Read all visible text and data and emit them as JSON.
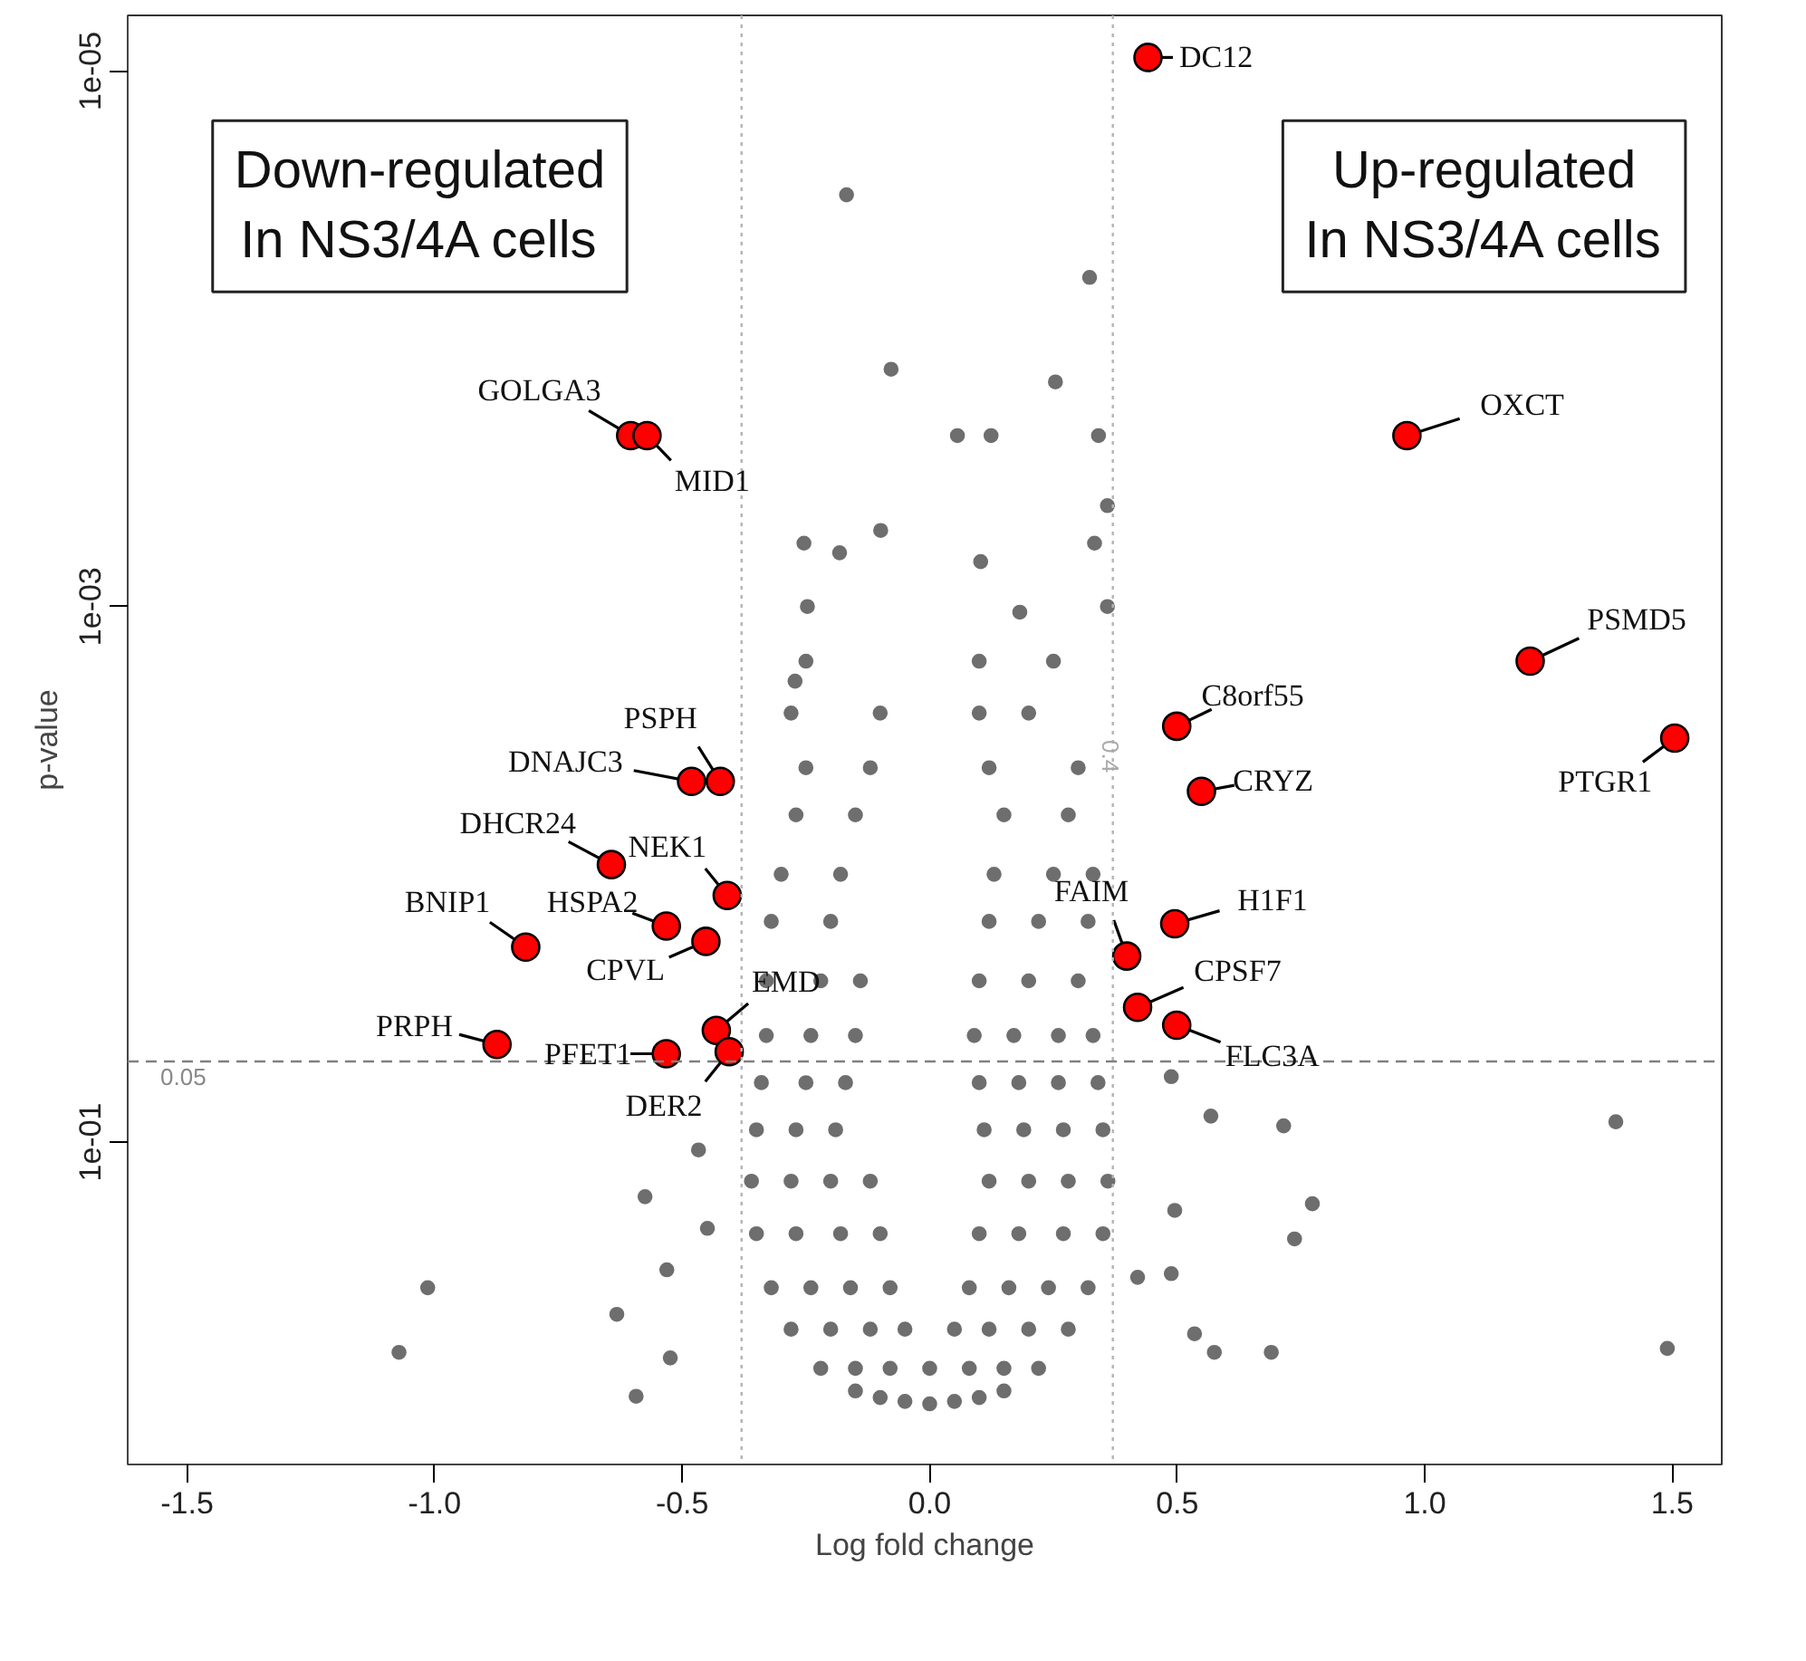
{
  "chart_data": {
    "type": "scatter",
    "xlabel": "Log fold change",
    "ylabel": "p-value",
    "log": "y",
    "marker": "circle",
    "grid": false,
    "xlim": [
      -1.62,
      1.6
    ],
    "ylim": [
      1.6,
      6.2e-06
    ],
    "xticks": [
      {
        "value": -1.5,
        "label": "-1.5"
      },
      {
        "value": -1.0,
        "label": "-1.0"
      },
      {
        "value": -0.5,
        "label": "-0.5"
      },
      {
        "value": 0.0,
        "label": "0.0"
      },
      {
        "value": 0.5,
        "label": "0.5"
      },
      {
        "value": 1.0,
        "label": "1.0"
      },
      {
        "value": 1.5,
        "label": "1.5"
      }
    ],
    "yticks": [
      {
        "value": 1e-05,
        "label": "1e-05"
      },
      {
        "value": 0.001,
        "label": "1e-03"
      },
      {
        "value": 0.1,
        "label": "1e-01"
      }
    ],
    "ref_lines": [
      {
        "axis": "x",
        "value": -0.38,
        "line_style": "dotted",
        "color": "#b4b4b4"
      },
      {
        "axis": "x",
        "value": 0.37,
        "label": "0.4",
        "line_style": "dotted",
        "color": "#b4b4b4"
      },
      {
        "axis": "y",
        "value": 0.05,
        "label": "0.05",
        "line_style": "dashed",
        "color": "#808080"
      }
    ],
    "series": [
      {
        "color": "#6e6e6e",
        "x": [
          -0.15,
          -0.1,
          -0.05,
          0,
          0.05,
          0.1,
          0.15,
          -0.22,
          -0.15,
          -0.08,
          0.0,
          0.08,
          0.15,
          0.22,
          -0.28,
          -0.2,
          -0.12,
          -0.05,
          0.05,
          0.12,
          0.2,
          0.28,
          -0.32,
          -0.24,
          -0.16,
          -0.08,
          0.08,
          0.16,
          0.24,
          0.32,
          -0.35,
          -0.27,
          -0.18,
          -0.1,
          0.1,
          0.18,
          0.27,
          0.35,
          -0.36,
          -0.28,
          -0.2,
          -0.12,
          0.12,
          0.2,
          0.28,
          0.36,
          -0.35,
          -0.27,
          -0.19,
          0.11,
          0.19,
          0.27,
          0.35,
          -0.34,
          -0.25,
          -0.17,
          0.1,
          0.18,
          0.26,
          0.34,
          -0.33,
          -0.24,
          -0.15,
          0.09,
          0.17,
          0.26,
          0.33,
          -0.33,
          -0.22,
          -0.14,
          0.1,
          0.2,
          0.3,
          -0.32,
          -0.2,
          0.12,
          0.22,
          0.32,
          -0.3,
          -0.18,
          0.13,
          0.25,
          0.33,
          -0.27,
          -0.15,
          0.15,
          0.28,
          -0.25,
          -0.12,
          0.12,
          0.3,
          -0.28,
          -0.1,
          0.1,
          0.2,
          -0.25,
          0.1,
          0.25,
          -0.168,
          -0.078,
          0.323,
          0.254,
          0.341,
          0.056,
          0.124,
          -0.254,
          -0.182,
          -0.099,
          -0.247,
          -0.272,
          0.359,
          0.333,
          0.103,
          0.359,
          0.182,
          -0.575,
          -1.014,
          -1.072,
          -0.593,
          -0.524,
          -0.632,
          -0.531,
          -0.467,
          -0.449,
          1.386,
          1.49,
          0.715,
          0.568,
          0.773,
          0.737,
          0.69,
          0.575,
          0.535,
          0.495,
          0.488,
          0.42,
          0.488
        ],
        "values": [
          0.85,
          0.9,
          0.93,
          0.95,
          0.93,
          0.9,
          0.85,
          0.7,
          0.7,
          0.7,
          0.7,
          0.7,
          0.7,
          0.7,
          0.5,
          0.5,
          0.5,
          0.5,
          0.5,
          0.5,
          0.5,
          0.5,
          0.35,
          0.35,
          0.35,
          0.35,
          0.35,
          0.35,
          0.35,
          0.35,
          0.22,
          0.22,
          0.22,
          0.22,
          0.22,
          0.22,
          0.22,
          0.22,
          0.14,
          0.14,
          0.14,
          0.14,
          0.14,
          0.14,
          0.14,
          0.14,
          0.09,
          0.09,
          0.09,
          0.09,
          0.09,
          0.09,
          0.09,
          0.06,
          0.06,
          0.06,
          0.06,
          0.06,
          0.06,
          0.06,
          0.04,
          0.04,
          0.04,
          0.04,
          0.04,
          0.04,
          0.04,
          0.025,
          0.025,
          0.025,
          0.025,
          0.025,
          0.025,
          0.015,
          0.015,
          0.015,
          0.015,
          0.015,
          0.01,
          0.01,
          0.01,
          0.01,
          0.01,
          0.006,
          0.006,
          0.006,
          0.006,
          0.004,
          0.004,
          0.004,
          0.004,
          0.0025,
          0.0025,
          0.0025,
          0.0025,
          0.0016,
          0.0016,
          0.0016,
          2.9e-05,
          0.00013,
          5.9e-05,
          0.000145,
          0.00023,
          0.00023,
          0.00023,
          0.00058,
          0.00063,
          0.00052,
          0.001,
          0.0019,
          0.00042,
          0.00058,
          0.00068,
          0.001,
          0.00105,
          0.16,
          0.35,
          0.61,
          0.89,
          0.64,
          0.44,
          0.3,
          0.107,
          0.21,
          0.084,
          0.59,
          0.087,
          0.08,
          0.17,
          0.23,
          0.61,
          0.61,
          0.52,
          0.18,
          0.057,
          0.32,
          0.31
        ]
      },
      {
        "color": "#ff0000",
        "x": [
          0.441,
          -0.604,
          -0.571,
          0.964,
          1.213,
          1.505,
          0.499,
          0.549,
          -0.423,
          -0.481,
          -0.643,
          -0.409,
          -0.532,
          -0.452,
          -0.816,
          0.495,
          0.398,
          0.42,
          0.499,
          -0.431,
          -0.874,
          -0.532,
          -0.405
        ],
        "values": [
          8.9e-06,
          0.00023,
          0.00023,
          0.00023,
          0.0016,
          0.0031,
          0.0028,
          0.0049,
          0.0045,
          0.0045,
          0.0092,
          0.012,
          0.0156,
          0.0178,
          0.0187,
          0.0153,
          0.0202,
          0.0314,
          0.0366,
          0.0383,
          0.0432,
          0.0468,
          0.046
        ]
      }
    ],
    "annotations": [
      "Down-regulated\nIn NS3/4A cells",
      "Up-regulated\nIn NS3/4A cells",
      {
        "text": "DC12",
        "x": 0.441,
        "y": 8.9e-06
      },
      {
        "text": "GOLGA3",
        "x": -0.604,
        "y": 0.00023
      },
      {
        "text": "MID1",
        "x": -0.571,
        "y": 0.00023
      },
      {
        "text": "OXCT",
        "x": 0.964,
        "y": 0.00023
      },
      {
        "text": "PSMD5",
        "x": 1.213,
        "y": 0.0016
      },
      {
        "text": "PTGR1",
        "x": 1.505,
        "y": 0.0031
      },
      {
        "text": "C8orf55",
        "x": 0.499,
        "y": 0.0028
      },
      {
        "text": "CRYZ",
        "x": 0.549,
        "y": 0.0049
      },
      {
        "text": "PSPH",
        "x": -0.423,
        "y": 0.0045
      },
      {
        "text": "DNAJC3",
        "x": -0.481,
        "y": 0.0045
      },
      {
        "text": "DHCR24",
        "x": -0.643,
        "y": 0.0092
      },
      {
        "text": "NEK1",
        "x": -0.409,
        "y": 0.012
      },
      {
        "text": "HSPA2",
        "x": -0.532,
        "y": 0.0156
      },
      {
        "text": "CPVL",
        "x": -0.452,
        "y": 0.0178
      },
      {
        "text": "BNIP1",
        "x": -0.816,
        "y": 0.0187
      },
      {
        "text": "H1F1",
        "x": 0.495,
        "y": 0.0153
      },
      {
        "text": "FAIM",
        "x": 0.398,
        "y": 0.0202
      },
      {
        "text": "CPSF7",
        "x": 0.42,
        "y": 0.0314
      },
      {
        "text": "FLC3A",
        "x": 0.499,
        "y": 0.0366
      },
      {
        "text": "EMD",
        "x": -0.431,
        "y": 0.0383
      },
      {
        "text": "PRPH",
        "x": -0.874,
        "y": 0.0432
      },
      {
        "text": "PFET1",
        "x": -0.532,
        "y": 0.0468
      },
      {
        "text": "DER2",
        "x": -0.405,
        "y": 0.046
      }
    ]
  }
}
